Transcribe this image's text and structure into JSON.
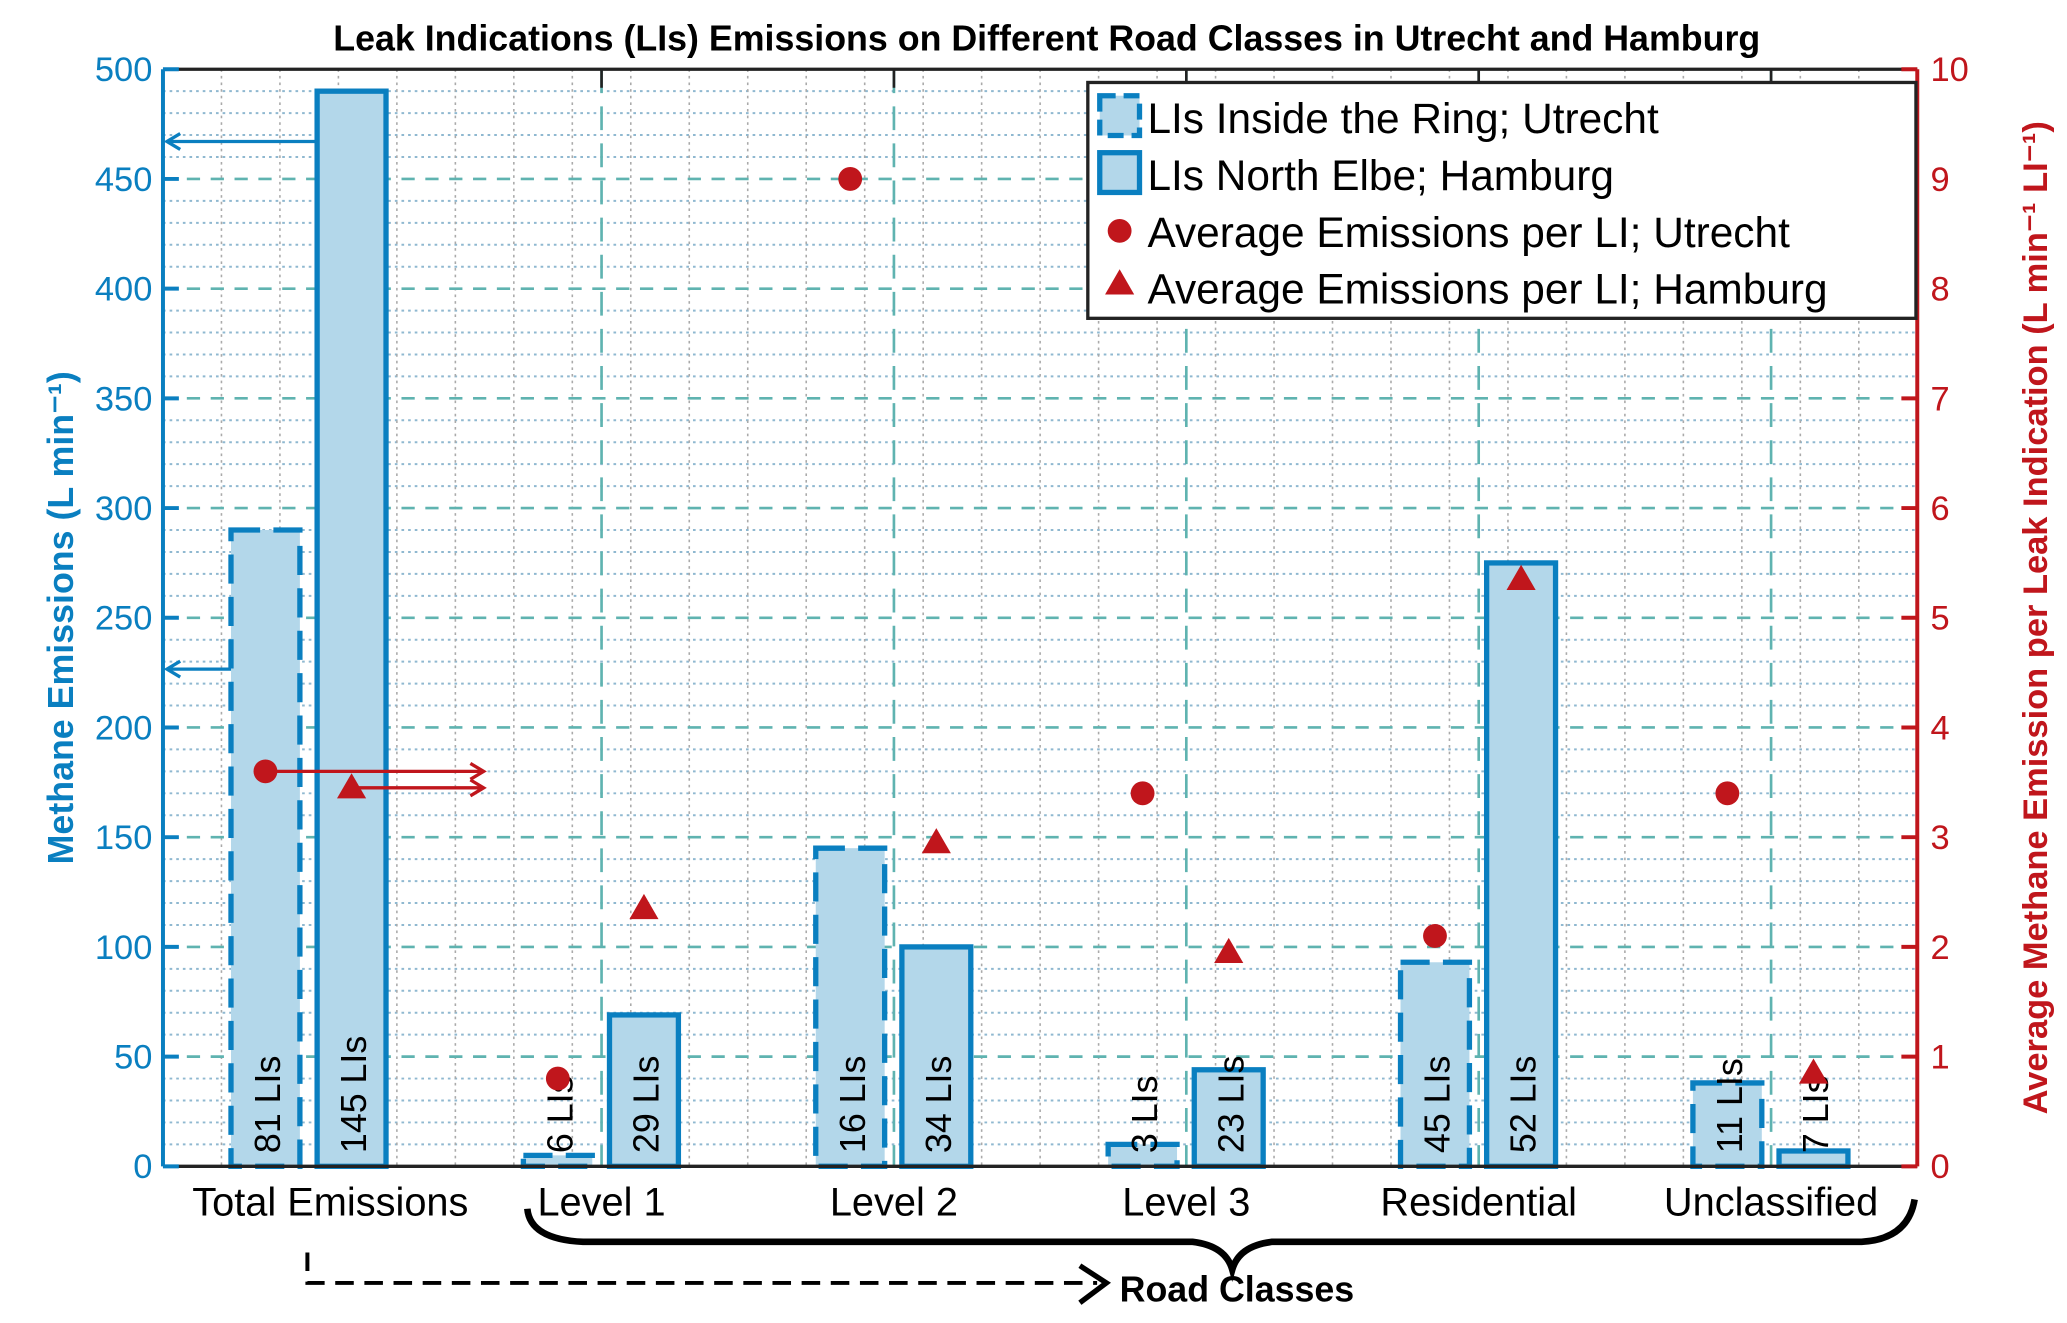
{
  "chart_data": {
    "type": "bar",
    "title": "Leak Indications (LIs) Emissions on Different Road Classes in Utrecht and Hamburg",
    "categories": [
      "Total Emissions",
      "Level 1",
      "Level 2",
      "Level 3",
      "Residential",
      "Unclassified"
    ],
    "xlabel": "Road Classes",
    "ylabel_left": "Methane Emissions (L min⁻¹)",
    "ylabel_right": "Average Methane Emission per Leak Indication (L min⁻¹ LI⁻¹)",
    "ylim_left": [
      0,
      500
    ],
    "ylim_right": [
      0,
      10
    ],
    "yticks_left": [
      "0",
      "50",
      "100",
      "150",
      "200",
      "250",
      "300",
      "350",
      "400",
      "450",
      "500"
    ],
    "yticks_right": [
      "0",
      "1",
      "2",
      "3",
      "4",
      "5",
      "6",
      "7",
      "8",
      "9",
      "10"
    ],
    "grid": true,
    "legend_position": "top-right",
    "series": [
      {
        "name": "LIs Inside the Ring; Utrecht",
        "kind": "bar",
        "axis": "left",
        "style": "dashed",
        "values": [
          290,
          5,
          145,
          10,
          93,
          38
        ],
        "labels": [
          "81 LIs",
          "6 LIs",
          "16 LIs",
          "3 LIs",
          "45 LIs",
          "11 LIs"
        ]
      },
      {
        "name": "LIs North Elbe; Hamburg",
        "kind": "bar",
        "axis": "left",
        "style": "solid",
        "values": [
          490,
          69,
          100,
          44,
          275,
          7
        ],
        "labels": [
          "145 LIs",
          "29 LIs",
          "34 LIs",
          "23 LIs",
          "52 LIs",
          "7 LIs"
        ]
      },
      {
        "name": "Average Emissions per LI; Utrecht",
        "kind": "scatter",
        "marker": "circle",
        "axis": "right",
        "values": [
          3.6,
          0.8,
          9.0,
          3.4,
          2.1,
          3.4
        ]
      },
      {
        "name": "Average Emissions per LI; Hamburg",
        "kind": "scatter",
        "marker": "triangle",
        "axis": "right",
        "values": [
          3.45,
          2.35,
          2.95,
          1.95,
          5.35,
          0.85
        ]
      }
    ],
    "colors": {
      "left_axis": "#0a7fc0",
      "right_axis": "#c0161c",
      "bar_fill": "#b3d7ea",
      "bar_edge": "#0a7fc0",
      "marker": "#c0161c",
      "grid_major": "#5fb3b0",
      "grid_minor": "#8fb8d0"
    }
  }
}
